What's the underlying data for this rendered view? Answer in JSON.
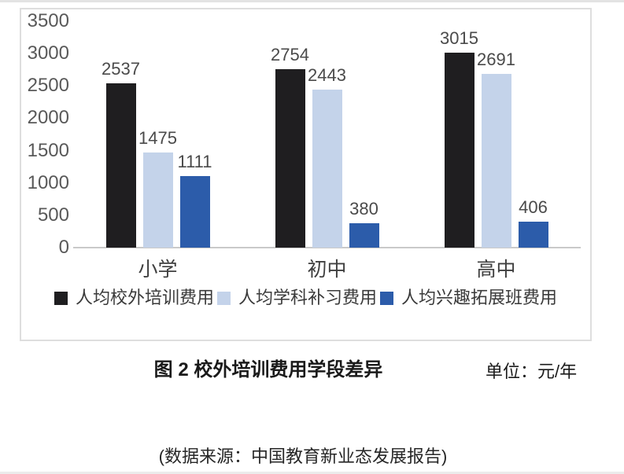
{
  "figure": {
    "caption": "图 2 校外培训费用学段差异",
    "unit_label": "单位：元/年",
    "source_note": "(数据来源：中国教育新业态发展报告)"
  },
  "chart_data": {
    "type": "bar",
    "title": "图 2 校外培训费用学段差异",
    "unit": "元/年",
    "categories": [
      "小学",
      "初中",
      "高中"
    ],
    "series": [
      {
        "name": "人均校外培训费用",
        "color": "#1f1e20",
        "values": [
          2537,
          2754,
          3015
        ]
      },
      {
        "name": "人均学科补习费用",
        "color": "#c4d3ea",
        "values": [
          1475,
          2443,
          2691
        ]
      },
      {
        "name": "人均兴趣拓展班费用",
        "color": "#2c5caa",
        "values": [
          1111,
          380,
          406
        ]
      }
    ],
    "y_axis": {
      "min": 0,
      "max": 3500,
      "step": 500,
      "tick_labels": [
        "0",
        "500",
        "1000",
        "1500",
        "2000",
        "2500",
        "3000",
        "3500"
      ]
    },
    "value_labels": true,
    "grid": false,
    "legend_position": "bottom-inside"
  }
}
